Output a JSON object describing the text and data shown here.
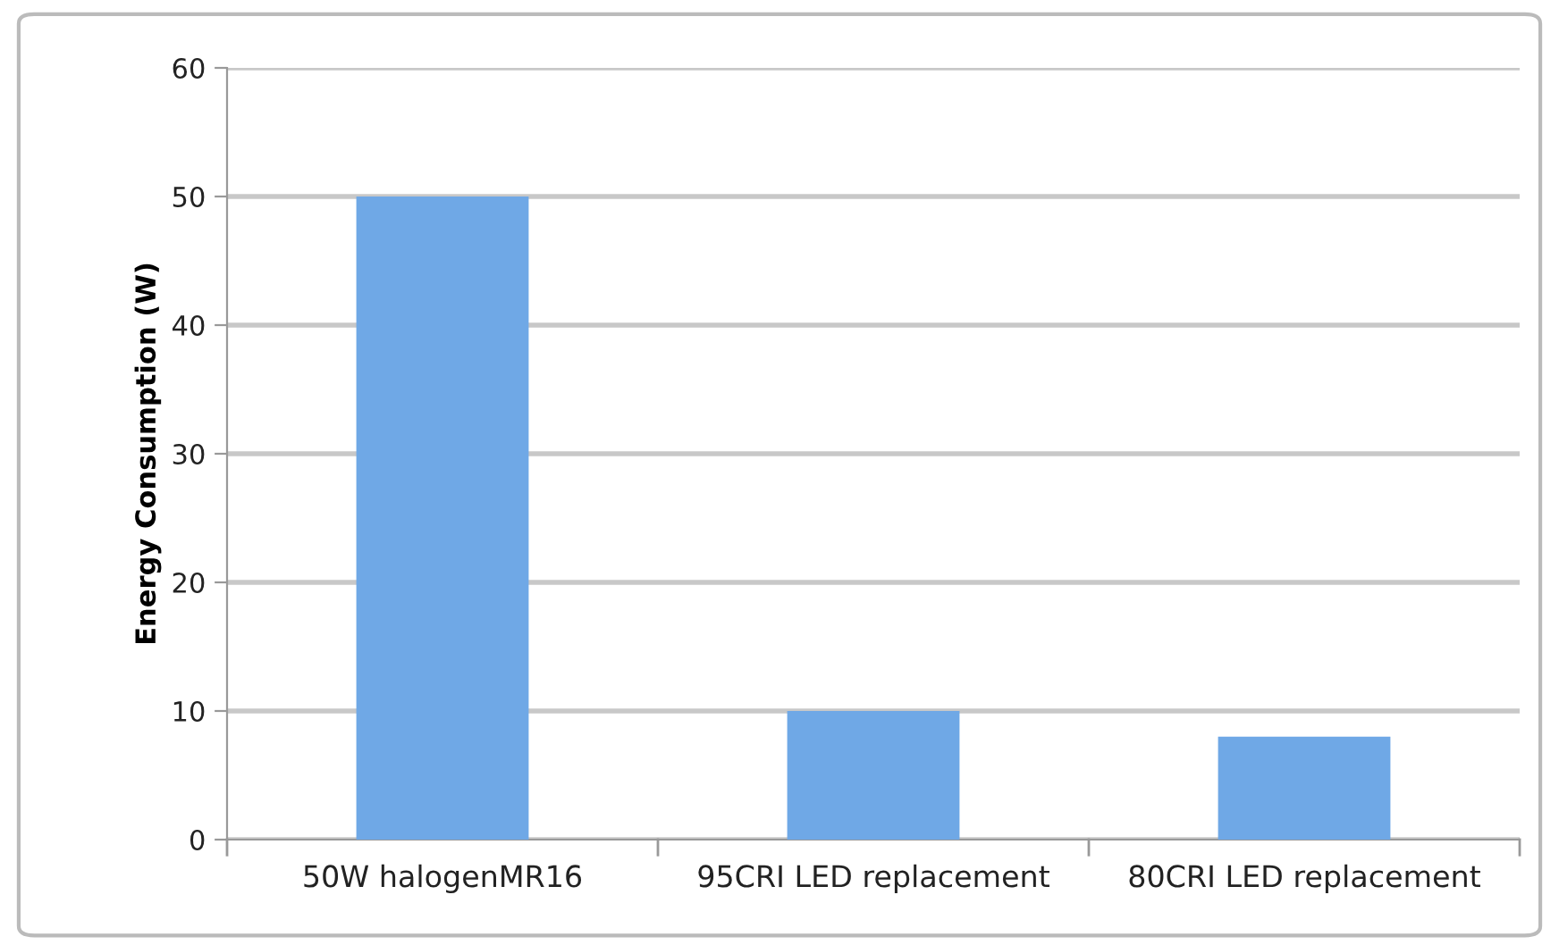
{
  "chart_data": {
    "type": "bar",
    "ylabel": "Energy Consumption (W)",
    "categories": [
      "50W halogenMR16",
      "95CRI LED replacement",
      "80CRI LED replacement"
    ],
    "values": [
      50,
      10,
      8
    ],
    "color": "#6fa8e6",
    "ylim": [
      0,
      60
    ],
    "yticks": [
      0,
      10,
      20,
      30,
      40,
      50,
      60
    ],
    "grid": "y",
    "legend": false
  }
}
